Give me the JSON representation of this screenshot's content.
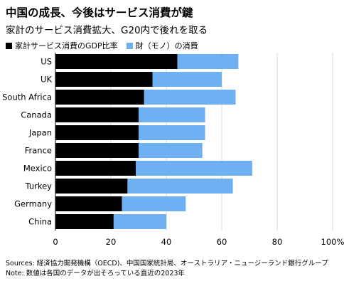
{
  "header": {
    "title": "中国の成長、今後はサービス消費が鍵",
    "subtitle": "家計のサービス消費拡大、G20内で後れを取る"
  },
  "legend": {
    "items": [
      {
        "label": "家計サービス消費のGDP比率",
        "color": "#000000"
      },
      {
        "label": "財（モノ）の消費",
        "color": "#6fb0f2"
      }
    ]
  },
  "footer": {
    "sources": "Sources: 経済協力開発機構（OECD)、中国国家統計局、オーストラリア・ニュージーランド銀行グループ",
    "note": "Note: 数値は各国のデータが出そろっている直近の2023年"
  },
  "chart_data": {
    "type": "bar",
    "orientation": "horizontal",
    "stacked": true,
    "categories": [
      "US",
      "UK",
      "South Africa",
      "Canada",
      "Japan",
      "France",
      "Mexico",
      "Turkey",
      "Germany",
      "China"
    ],
    "series": [
      {
        "name": "家計サービス消費のGDP比率",
        "color": "#000000",
        "values": [
          44,
          35,
          32,
          30,
          30,
          30,
          29,
          26,
          24,
          21
        ]
      },
      {
        "name": "財（モノ）の消費",
        "color": "#6fb0f2",
        "values": [
          22,
          25,
          33,
          24,
          24,
          23,
          42,
          38,
          23,
          19
        ]
      }
    ],
    "xlim": [
      0,
      100
    ],
    "xticks": [
      "0",
      "20",
      "40",
      "60",
      "80",
      "100%"
    ],
    "grid": true
  }
}
